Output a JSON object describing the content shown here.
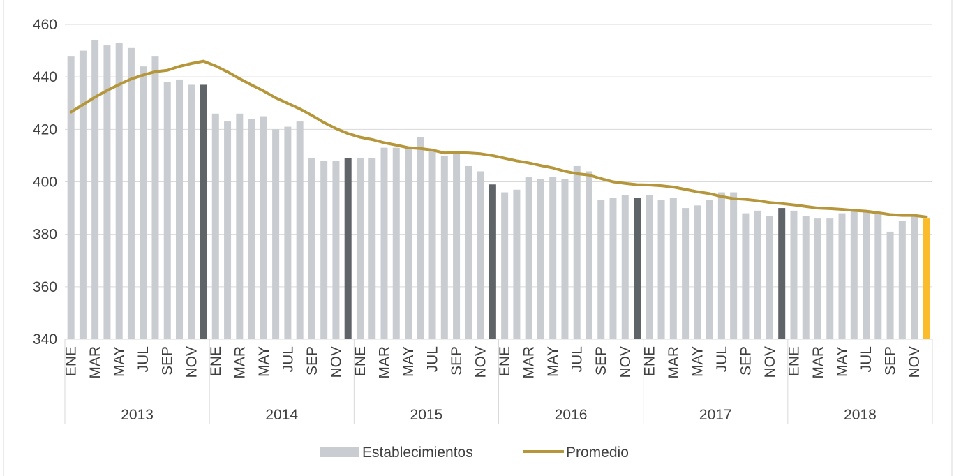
{
  "chart_data": {
    "type": "bar",
    "title": "",
    "xlabel": "",
    "ylabel": "",
    "ylim": [
      340,
      460
    ],
    "yticks": [
      340,
      360,
      380,
      400,
      420,
      440,
      460
    ],
    "grid": true,
    "legend_position": "bottom",
    "years": [
      "2013",
      "2014",
      "2015",
      "2016",
      "2017",
      "2018"
    ],
    "month_tick_labels": [
      "ENE",
      "MAR",
      "MAY",
      "JUL",
      "SEP",
      "NOV"
    ],
    "series": [
      {
        "name": "Establecimientos",
        "type": "bar",
        "values": [
          448,
          450,
          454,
          452,
          453,
          451,
          444,
          448,
          438,
          439,
          437,
          437,
          426,
          423,
          426,
          424,
          425,
          420,
          421,
          423,
          409,
          408,
          408,
          409,
          409,
          409,
          413,
          413,
          413,
          417,
          412,
          410,
          411,
          406,
          404,
          399,
          396,
          397,
          402,
          401,
          402,
          401,
          406,
          404,
          393,
          394,
          395,
          394,
          395,
          393,
          394,
          390,
          391,
          393,
          396,
          396,
          388,
          389,
          387,
          390,
          389,
          387,
          386,
          386,
          388,
          389,
          389,
          388,
          381,
          385,
          387,
          386
        ]
      },
      {
        "name": "Promedio",
        "type": "line",
        "values": [
          426.6,
          429.4,
          432.3,
          434.8,
          437.1,
          439.2,
          440.7,
          442.0,
          442.5,
          444.0,
          445.1,
          446.0,
          444.2,
          441.9,
          439.3,
          436.9,
          434.6,
          432.0,
          429.9,
          427.8,
          425.3,
          422.6,
          420.3,
          418.4,
          417.0,
          416.1,
          414.9,
          414.0,
          413.0,
          412.7,
          412.1,
          411.0,
          411.1,
          411.0,
          410.7,
          410.0,
          409.0,
          408.0,
          407.2,
          406.2,
          405.3,
          404.0,
          403.1,
          402.6,
          401.2,
          400.0,
          399.4,
          398.9,
          398.8,
          398.5,
          398.0,
          397.1,
          396.2,
          395.5,
          394.4,
          393.6,
          393.3,
          392.8,
          392.1,
          391.7,
          391.2,
          390.6,
          390.0,
          389.8,
          389.5,
          389.1,
          388.8,
          388.2,
          387.5,
          387.2,
          387.2,
          386.6
        ]
      }
    ],
    "colors": {
      "bar_default": "#c9cdd1",
      "bar_december": "#5f6469",
      "bar_last": "#fbbc2c",
      "line": "#b5963a",
      "grid": "#d9d9d9",
      "axis": "#d9d9d9",
      "text": "#404040"
    }
  }
}
